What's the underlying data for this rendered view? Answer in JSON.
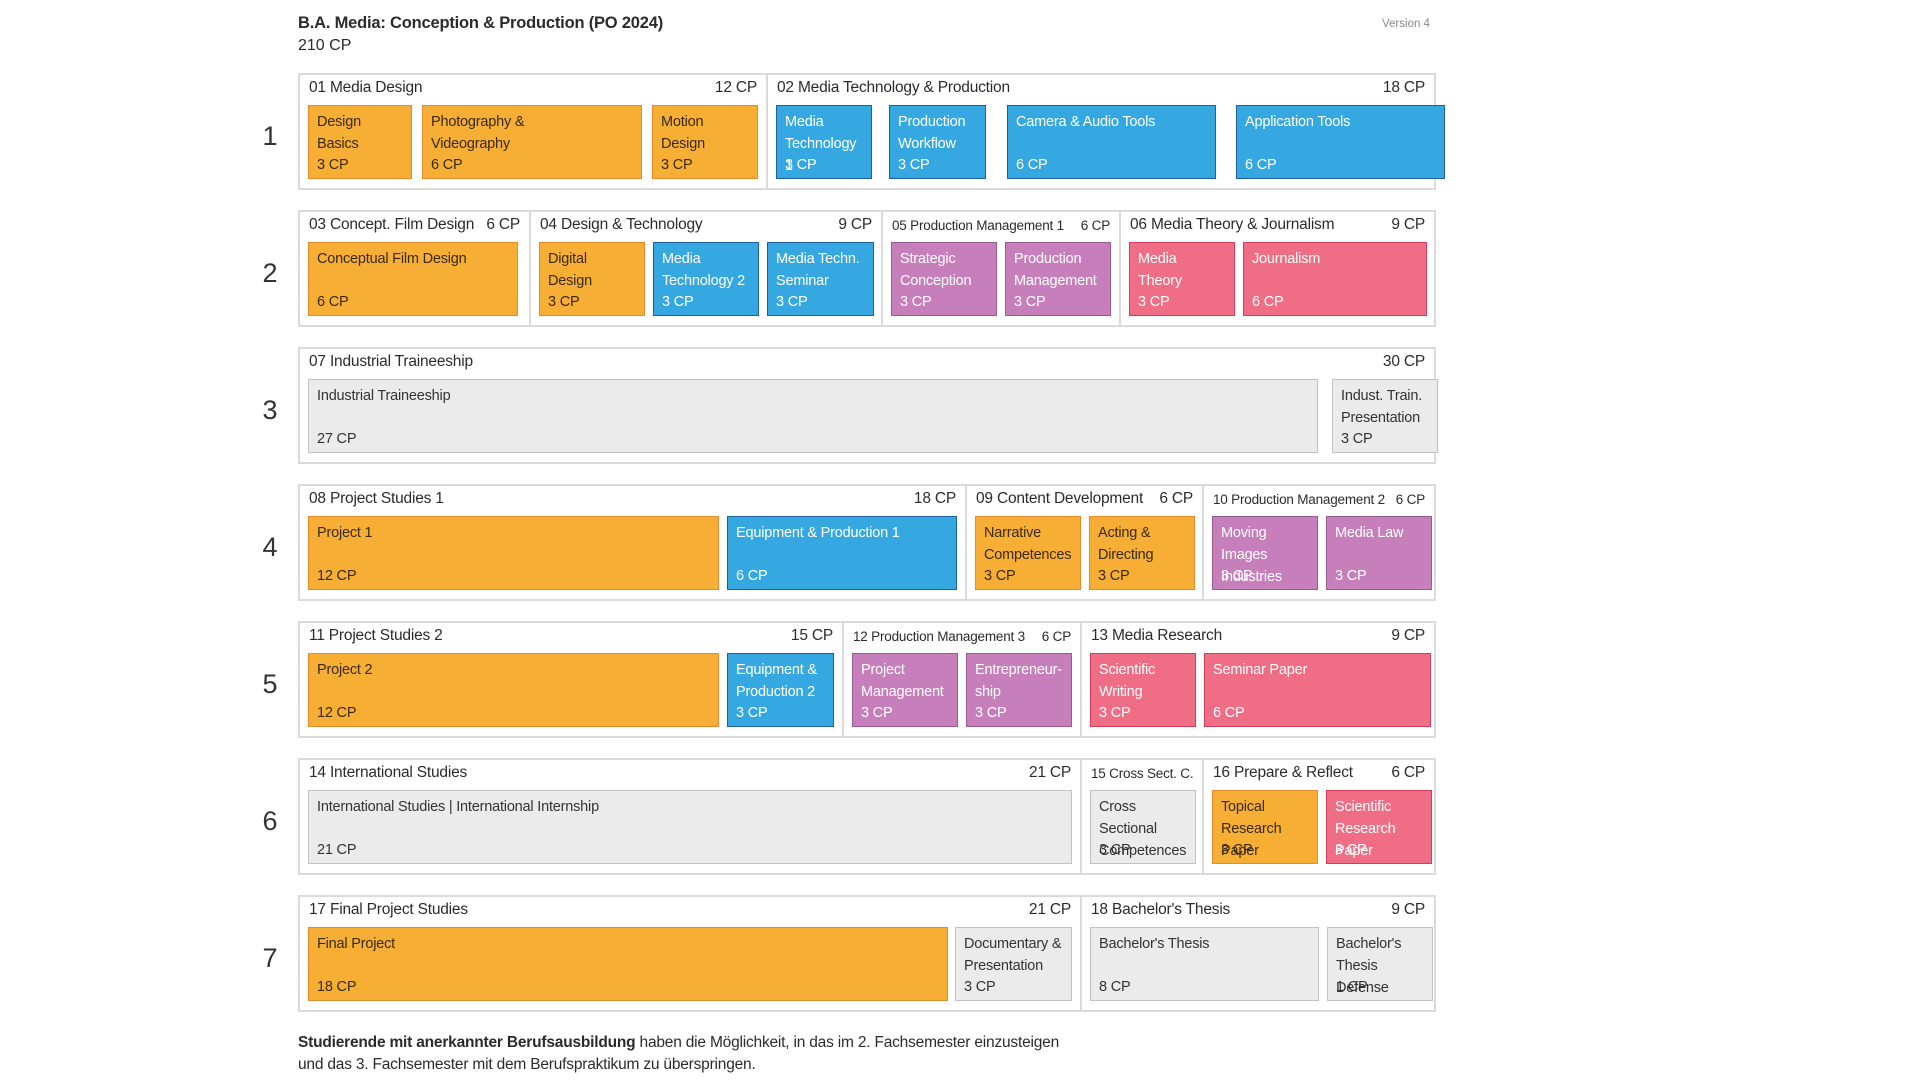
{
  "header": {
    "title": "B.A. Media: Conception & Production (PO 2024)",
    "total_cp": "210 CP",
    "version": "Version 4"
  },
  "semesters": [
    {
      "num": "1",
      "groups": [
        {
          "title": "01 Media Design",
          "cp": "12 CP",
          "modules": [
            {
              "name": "Design\nBasics",
              "cp": "3 CP",
              "color": "orange"
            },
            {
              "name": "Photography &\nVideography",
              "cp": "6 CP",
              "color": "orange"
            },
            {
              "name": "Motion\nDesign",
              "cp": "3 CP",
              "color": "orange"
            }
          ]
        },
        {
          "title": "02 Media Technology & Production",
          "cp": "18 CP",
          "modules": [
            {
              "name": "Media\nTechnology 1",
              "cp": "3 CP",
              "color": "blue"
            },
            {
              "name": "Production\nWorkflow",
              "cp": "3 CP",
              "color": "blue"
            },
            {
              "name": "Camera & Audio Tools",
              "cp": "6 CP",
              "color": "blue"
            },
            {
              "name": "Application Tools",
              "cp": "6 CP",
              "color": "blue"
            }
          ]
        }
      ]
    },
    {
      "num": "2",
      "groups": [
        {
          "title": "03 Concept. Film Design",
          "cp": "6 CP",
          "modules": [
            {
              "name": "Conceptual Film Design",
              "cp": "6 CP",
              "color": "orange"
            }
          ]
        },
        {
          "title": "04 Design & Technology",
          "cp": "9 CP",
          "modules": [
            {
              "name": "Digital\nDesign",
              "cp": "3 CP",
              "color": "orange"
            },
            {
              "name": "Media\nTechnology 2",
              "cp": "3 CP",
              "color": "blue"
            },
            {
              "name": "Media Techn.\nSeminar",
              "cp": "3 CP",
              "color": "blue"
            }
          ]
        },
        {
          "title": "05 Production Management 1",
          "cp": "6 CP",
          "modules": [
            {
              "name": "Strategic\nConception",
              "cp": "3 CP",
              "color": "purple"
            },
            {
              "name": "Production\nManagement",
              "cp": "3 CP",
              "color": "purple"
            }
          ]
        },
        {
          "title": "06 Media Theory & Journalism",
          "cp": "9 CP",
          "modules": [
            {
              "name": "Media\nTheory",
              "cp": "3 CP",
              "color": "red"
            },
            {
              "name": "Journalism",
              "cp": "6 CP",
              "color": "red"
            }
          ]
        }
      ]
    },
    {
      "num": "3",
      "groups": [
        {
          "title": "07 Industrial Traineeship",
          "cp": "30 CP",
          "modules": [
            {
              "name": "Industrial Traineeship",
              "cp": "27 CP",
              "color": "grey"
            },
            {
              "name": "Indust. Train.\nPresentation",
              "cp": "3 CP",
              "color": "grey"
            }
          ]
        }
      ]
    },
    {
      "num": "4",
      "groups": [
        {
          "title": "08 Project Studies 1",
          "cp": "18 CP",
          "modules": [
            {
              "name": "Project 1",
              "cp": "12 CP",
              "color": "orange"
            },
            {
              "name": "Equipment & Production 1",
              "cp": "6 CP",
              "color": "blue"
            }
          ]
        },
        {
          "title": "09 Content Development",
          "cp": "6 CP",
          "modules": [
            {
              "name": "Narrative\nCompetences",
              "cp": "3 CP",
              "color": "orange"
            },
            {
              "name": "Acting &\nDirecting",
              "cp": "3 CP",
              "color": "orange"
            }
          ]
        },
        {
          "title": "10 Production Management 2",
          "cp": "6 CP",
          "modules": [
            {
              "name": "Moving Images\nIndustries",
              "cp": "3 CP",
              "color": "purple"
            },
            {
              "name": "Media Law",
              "cp": "3 CP",
              "color": "purple"
            }
          ]
        }
      ]
    },
    {
      "num": "5",
      "groups": [
        {
          "title": "11 Project Studies 2",
          "cp": "15 CP",
          "modules": [
            {
              "name": "Project 2",
              "cp": "12 CP",
              "color": "orange"
            },
            {
              "name": "Equipment &\nProduction 2",
              "cp": "3 CP",
              "color": "blue"
            }
          ]
        },
        {
          "title": "12 Production Management 3",
          "cp": "6 CP",
          "modules": [
            {
              "name": "Project\nManagement",
              "cp": "3 CP",
              "color": "purple"
            },
            {
              "name": "Entrepreneur-\nship",
              "cp": "3 CP",
              "color": "purple"
            }
          ]
        },
        {
          "title": "13 Media Research",
          "cp": "9 CP",
          "modules": [
            {
              "name": "Scientific\nWriting",
              "cp": "3 CP",
              "color": "red"
            },
            {
              "name": "Seminar Paper",
              "cp": "6 CP",
              "color": "red"
            }
          ]
        }
      ]
    },
    {
      "num": "6",
      "groups": [
        {
          "title": "14 International Studies",
          "cp": "21 CP",
          "modules": [
            {
              "name": "International Studies | International Internship",
              "cp": "21 CP",
              "color": "grey"
            }
          ]
        },
        {
          "title": "15 Cross Sect. C.",
          "cp": "",
          "modules": [
            {
              "name": "Cross Sectional\nCompetences",
              "cp": "3 CP",
              "color": "grey"
            }
          ]
        },
        {
          "title": "16 Prepare & Reflect",
          "cp": "6 CP",
          "modules": [
            {
              "name": "Topical\nResearch Paper",
              "cp": "3 CP",
              "color": "orange"
            },
            {
              "name": "Scientific\nResearch Paper",
              "cp": "3 CP",
              "color": "red"
            }
          ]
        }
      ]
    },
    {
      "num": "7",
      "groups": [
        {
          "title": "17 Final Project Studies",
          "cp": "21 CP",
          "modules": [
            {
              "name": "Final Project",
              "cp": "18 CP",
              "color": "orange"
            },
            {
              "name": "Documentary &\nPresentation",
              "cp": "3 CP",
              "color": "grey"
            }
          ]
        },
        {
          "title": "18 Bachelor's Thesis",
          "cp": "9 CP",
          "modules": [
            {
              "name": "Bachelor's Thesis",
              "cp": "8 CP",
              "color": "grey"
            },
            {
              "name": "Bachelor's\nThesis Defense",
              "cp": "1 CP",
              "color": "grey"
            }
          ]
        }
      ]
    }
  ],
  "footnote": {
    "bold": "Studierende mit anerkannter Berufsausbildung",
    "line1": " haben die Möglichkeit, in das im 2. Fachsemester einzusteigen",
    "line2": "und das 3. Fachsemester mit dem Berufspraktikum zu überspringen."
  }
}
